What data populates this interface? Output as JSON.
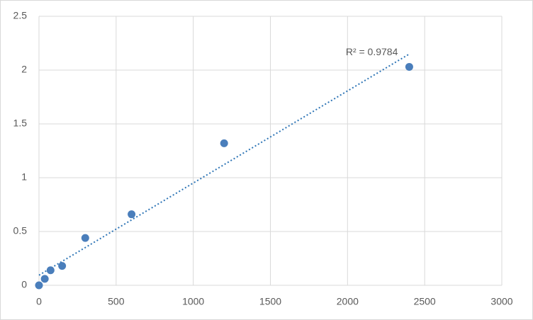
{
  "chart_data": {
    "type": "scatter",
    "x": [
      0,
      37.5,
      75,
      150,
      300,
      600,
      1200,
      2400
    ],
    "values": [
      0,
      0.06,
      0.14,
      0.18,
      0.44,
      0.66,
      1.32,
      2.03
    ],
    "color": "#4a7ebb",
    "xlim": [
      0,
      3000
    ],
    "xticks": [
      0,
      500,
      1000,
      1500,
      2000,
      2500,
      3000
    ],
    "ylim": [
      0,
      2.5
    ],
    "yticks": [
      0,
      0.5,
      1,
      1.5,
      2,
      2.5
    ],
    "grid": true,
    "trendline": "linear",
    "annotation": "R² = 0.9784"
  }
}
